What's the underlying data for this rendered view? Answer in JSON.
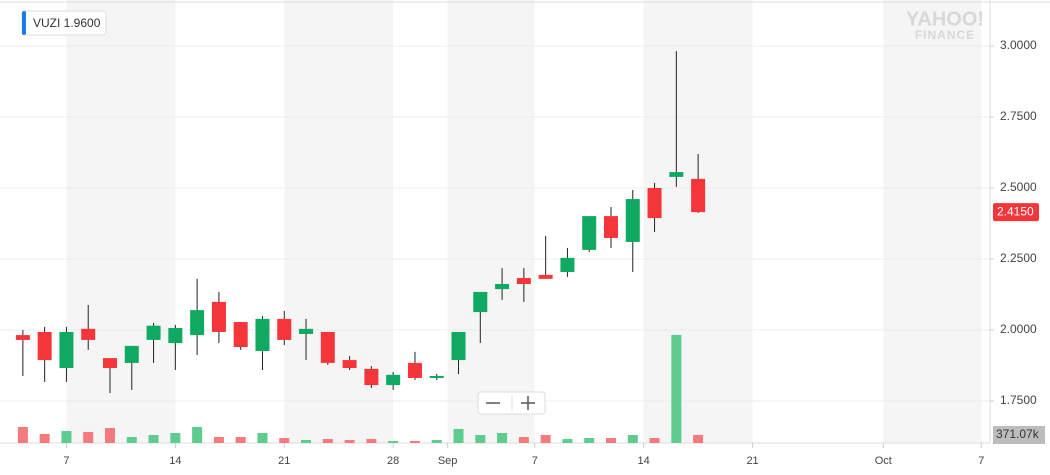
{
  "chart_data": {
    "type": "candlestick",
    "ticker_label": "VUZI 1.9600",
    "logo_top": "YAHOO!",
    "logo_bottom": "FINANCE",
    "x": [
      0,
      1,
      2,
      3,
      4,
      5,
      6,
      7,
      8,
      9,
      10,
      11,
      12,
      13,
      14,
      15,
      16,
      17,
      18,
      19,
      20,
      21,
      22,
      23,
      24,
      25,
      26,
      27,
      28,
      29,
      30,
      31
    ],
    "open": [
      1.982,
      1.993,
      1.866,
      2.004,
      1.901,
      1.884,
      1.965,
      1.954,
      1.982,
      2.099,
      2.028,
      1.926,
      2.039,
      1.986,
      1.993,
      1.894,
      1.863,
      1.806,
      1.884,
      1.831,
      1.894,
      2.063,
      2.144,
      2.183,
      2.194,
      2.204,
      2.282,
      2.401,
      2.31,
      2.5,
      2.539,
      2.532
    ],
    "high": [
      2.0,
      2.011,
      2.011,
      2.088,
      1.901,
      1.944,
      2.025,
      2.018,
      2.18,
      2.134,
      2.028,
      2.049,
      2.067,
      2.039,
      1.993,
      1.908,
      1.873,
      1.852,
      1.923,
      1.845,
      1.993,
      2.134,
      2.218,
      2.218,
      2.331,
      2.289,
      2.401,
      2.433,
      2.493,
      2.518,
      2.982,
      2.62
    ],
    "low": [
      1.838,
      1.817,
      1.817,
      1.93,
      1.778,
      1.789,
      1.884,
      1.859,
      1.912,
      1.954,
      1.93,
      1.859,
      1.947,
      1.894,
      1.877,
      1.859,
      1.796,
      1.789,
      1.824,
      1.824,
      1.845,
      1.954,
      2.106,
      2.099,
      2.18,
      2.187,
      2.275,
      2.289,
      2.204,
      2.345,
      2.504,
      2.412
    ],
    "close": [
      1.965,
      1.894,
      1.993,
      1.965,
      1.866,
      1.944,
      2.015,
      2.007,
      2.07,
      1.993,
      1.94,
      2.039,
      1.965,
      2.004,
      1.884,
      1.866,
      1.806,
      1.842,
      1.831,
      1.838,
      1.993,
      2.134,
      2.162,
      2.162,
      2.18,
      2.254,
      2.401,
      2.324,
      2.461,
      2.394,
      2.556,
      2.415
    ],
    "volume": [
      742400,
      417600,
      556800,
      510400,
      696000,
      278400,
      371200,
      464000,
      742400,
      278400,
      278400,
      464000,
      232000,
      139200,
      185600,
      139200,
      185600,
      92800,
      92800,
      139200,
      649600,
      371200,
      464000,
      278400,
      371200,
      185600,
      232000,
      232000,
      371200,
      232000,
      5011200,
      371070
    ],
    "last_price_label": "2.4150",
    "last_volume_label": "371.07k",
    "up_color": "#0fa961",
    "down_color": "#f4363b",
    "volume_up_color": "#5ecb8f",
    "volume_down_color": "#f57a7d",
    "xlim": [
      -1.05,
      44.4
    ],
    "xticks": [
      {
        "value": 2,
        "label": "7"
      },
      {
        "value": 7,
        "label": "14"
      },
      {
        "value": 12,
        "label": "21"
      },
      {
        "value": 17,
        "label": "28"
      },
      {
        "value": 19.5,
        "label": "Sep"
      },
      {
        "value": 23.5,
        "label": "7"
      },
      {
        "value": 28.5,
        "label": "14"
      },
      {
        "value": 33.5,
        "label": "21"
      },
      {
        "value": 39.5,
        "label": "Oct"
      },
      {
        "value": 44,
        "label": "7"
      }
    ],
    "ylim": [
      1.602,
      3.162
    ],
    "yticks": [
      {
        "value": 1.75,
        "label": "1.7500"
      },
      {
        "value": 2.0,
        "label": "2.0000"
      },
      {
        "value": 2.25,
        "label": "2.2500"
      },
      {
        "value": 2.5,
        "label": "2.5000"
      },
      {
        "value": 2.75,
        "label": "2.7500"
      },
      {
        "value": 3.0,
        "label": "3.0000"
      }
    ],
    "vlim": [
      0,
      5100000
    ],
    "grid": true
  }
}
